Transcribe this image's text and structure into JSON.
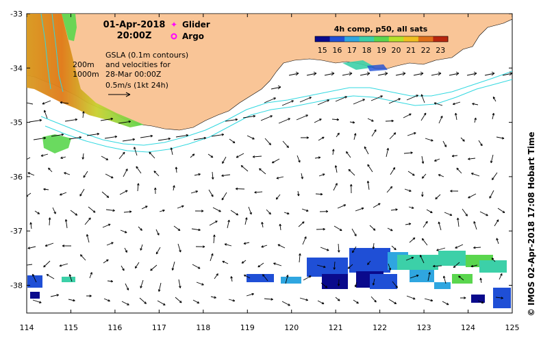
{
  "title": {
    "date": "01-Apr-2018",
    "time": "20:00Z"
  },
  "legend": {
    "glider_label": "Glider",
    "argo_label": "Argo",
    "glider_color": "#ff00ff",
    "argo_color": "#ff00ff"
  },
  "colorbar": {
    "title": "4h comp, p50, all sats",
    "ticks": [
      "15",
      "16",
      "17",
      "18",
      "19",
      "20",
      "21",
      "22",
      "23"
    ],
    "colors": [
      "#0a0a8c",
      "#1f4fd6",
      "#2fa6e0",
      "#3cd0a8",
      "#5ad64e",
      "#b6e22a",
      "#f0c020",
      "#e0701a",
      "#b8260e"
    ]
  },
  "annotations": {
    "gsla_line1": "GSLA (0.1m contours)",
    "gsla_line2": "and velocities for",
    "gsla_line3": "28-Mar 00:00Z",
    "scale_label": "0.5m/s (1kt 24h)",
    "depth_200": "200m",
    "depth_1000": "1000m"
  },
  "axes": {
    "x_ticks": [
      "114",
      "115",
      "116",
      "117",
      "118",
      "119",
      "120",
      "121",
      "122",
      "123",
      "124",
      "125"
    ],
    "y_ticks": [
      "-33",
      "-34",
      "-35",
      "-36",
      "-37",
      "-38"
    ]
  },
  "colors": {
    "land": "#f9c597",
    "isobath": "#30d8e0",
    "arrow": "#000000"
  },
  "credit": "IMOS 02-Apr-2018 17:08 Hobart Time",
  "copyright_symbol": "©"
}
